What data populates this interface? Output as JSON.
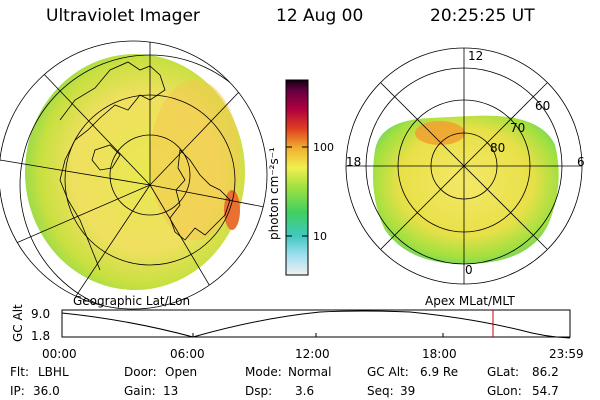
{
  "header": {
    "title": "Ultraviolet Imager",
    "date": "12 Aug 00",
    "time": "20:25:25 UT"
  },
  "colorbar": {
    "unit_label": "photon cm⁻²s⁻¹",
    "ticks": [
      "100",
      "10"
    ]
  },
  "geo_panel": {
    "label": "Geographic Lat/Lon"
  },
  "mag_panel": {
    "label": "Apex MLat/MLT",
    "mlt_labels": {
      "top": "12",
      "left": "18",
      "right": "6",
      "bottom": "0"
    },
    "lat_labels": [
      "60",
      "70",
      "80"
    ]
  },
  "altitude_plot": {
    "ylabel": "GC Alt",
    "yticks": [
      "9.0",
      "1.8"
    ],
    "xticks": [
      "00:00",
      "06:00",
      "12:00",
      "18:00",
      "23:59"
    ],
    "current_time_marker": "20:25"
  },
  "info": {
    "row1": [
      {
        "label": "Flt:",
        "value": "LBHL"
      },
      {
        "label": "Door:",
        "value": "Open"
      },
      {
        "label": "Mode:",
        "value": "Normal"
      },
      {
        "label": "GC Alt:",
        "value": "6.9 Re"
      },
      {
        "label": "GLat:",
        "value": "86.2"
      }
    ],
    "row2": [
      {
        "label": "IP:",
        "value": "36.0"
      },
      {
        "label": "Gain:",
        "value": "13"
      },
      {
        "label": "Dsp:",
        "value": "3.6"
      },
      {
        "label": "Seq:",
        "value": "39"
      },
      {
        "label": "GLon:",
        "value": "54.7"
      }
    ]
  },
  "colors": {
    "aurora_yellow": "#f0e040",
    "aurora_green": "#90e040",
    "aurora_orange": "#f0a030",
    "marker_red": "#cc0000"
  }
}
